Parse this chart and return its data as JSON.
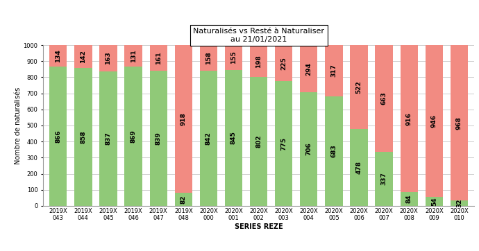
{
  "categories": [
    "2019X\n043",
    "2019X\n044",
    "2019X\n045",
    "2019X\n046",
    "2019X\n047",
    "2019X\n048",
    "2020X\n000",
    "2020X\n001",
    "2020X\n002",
    "2020X\n003",
    "2020X\n004",
    "2020X\n005",
    "2020X\n006",
    "2020X\n007",
    "2020X\n008",
    "2020X\n009",
    "2020X\n010"
  ],
  "green_values": [
    866,
    858,
    837,
    869,
    839,
    82,
    842,
    845,
    802,
    775,
    706,
    683,
    478,
    337,
    84,
    54,
    32
  ],
  "red_values": [
    134,
    142,
    163,
    131,
    161,
    918,
    158,
    155,
    198,
    225,
    294,
    317,
    522,
    663,
    916,
    946,
    968
  ],
  "green_color": "#90C978",
  "red_color": "#F28B82",
  "title_line1": "Naturalisés vs Resté à Naturaliser",
  "title_line2": "au 21/01/2021",
  "xlabel": "SERIES REZE",
  "ylabel": "Nombre de naturalisés",
  "ylim": [
    0,
    1000
  ],
  "yticks": [
    0,
    100,
    200,
    300,
    400,
    500,
    600,
    700,
    800,
    900,
    1000
  ],
  "bar_width": 0.7,
  "title_fontsize": 8,
  "axis_label_fontsize": 7,
  "tick_fontsize": 6,
  "annotation_fontsize": 6.5,
  "background_color": "#ffffff",
  "grid_color": "#cccccc"
}
